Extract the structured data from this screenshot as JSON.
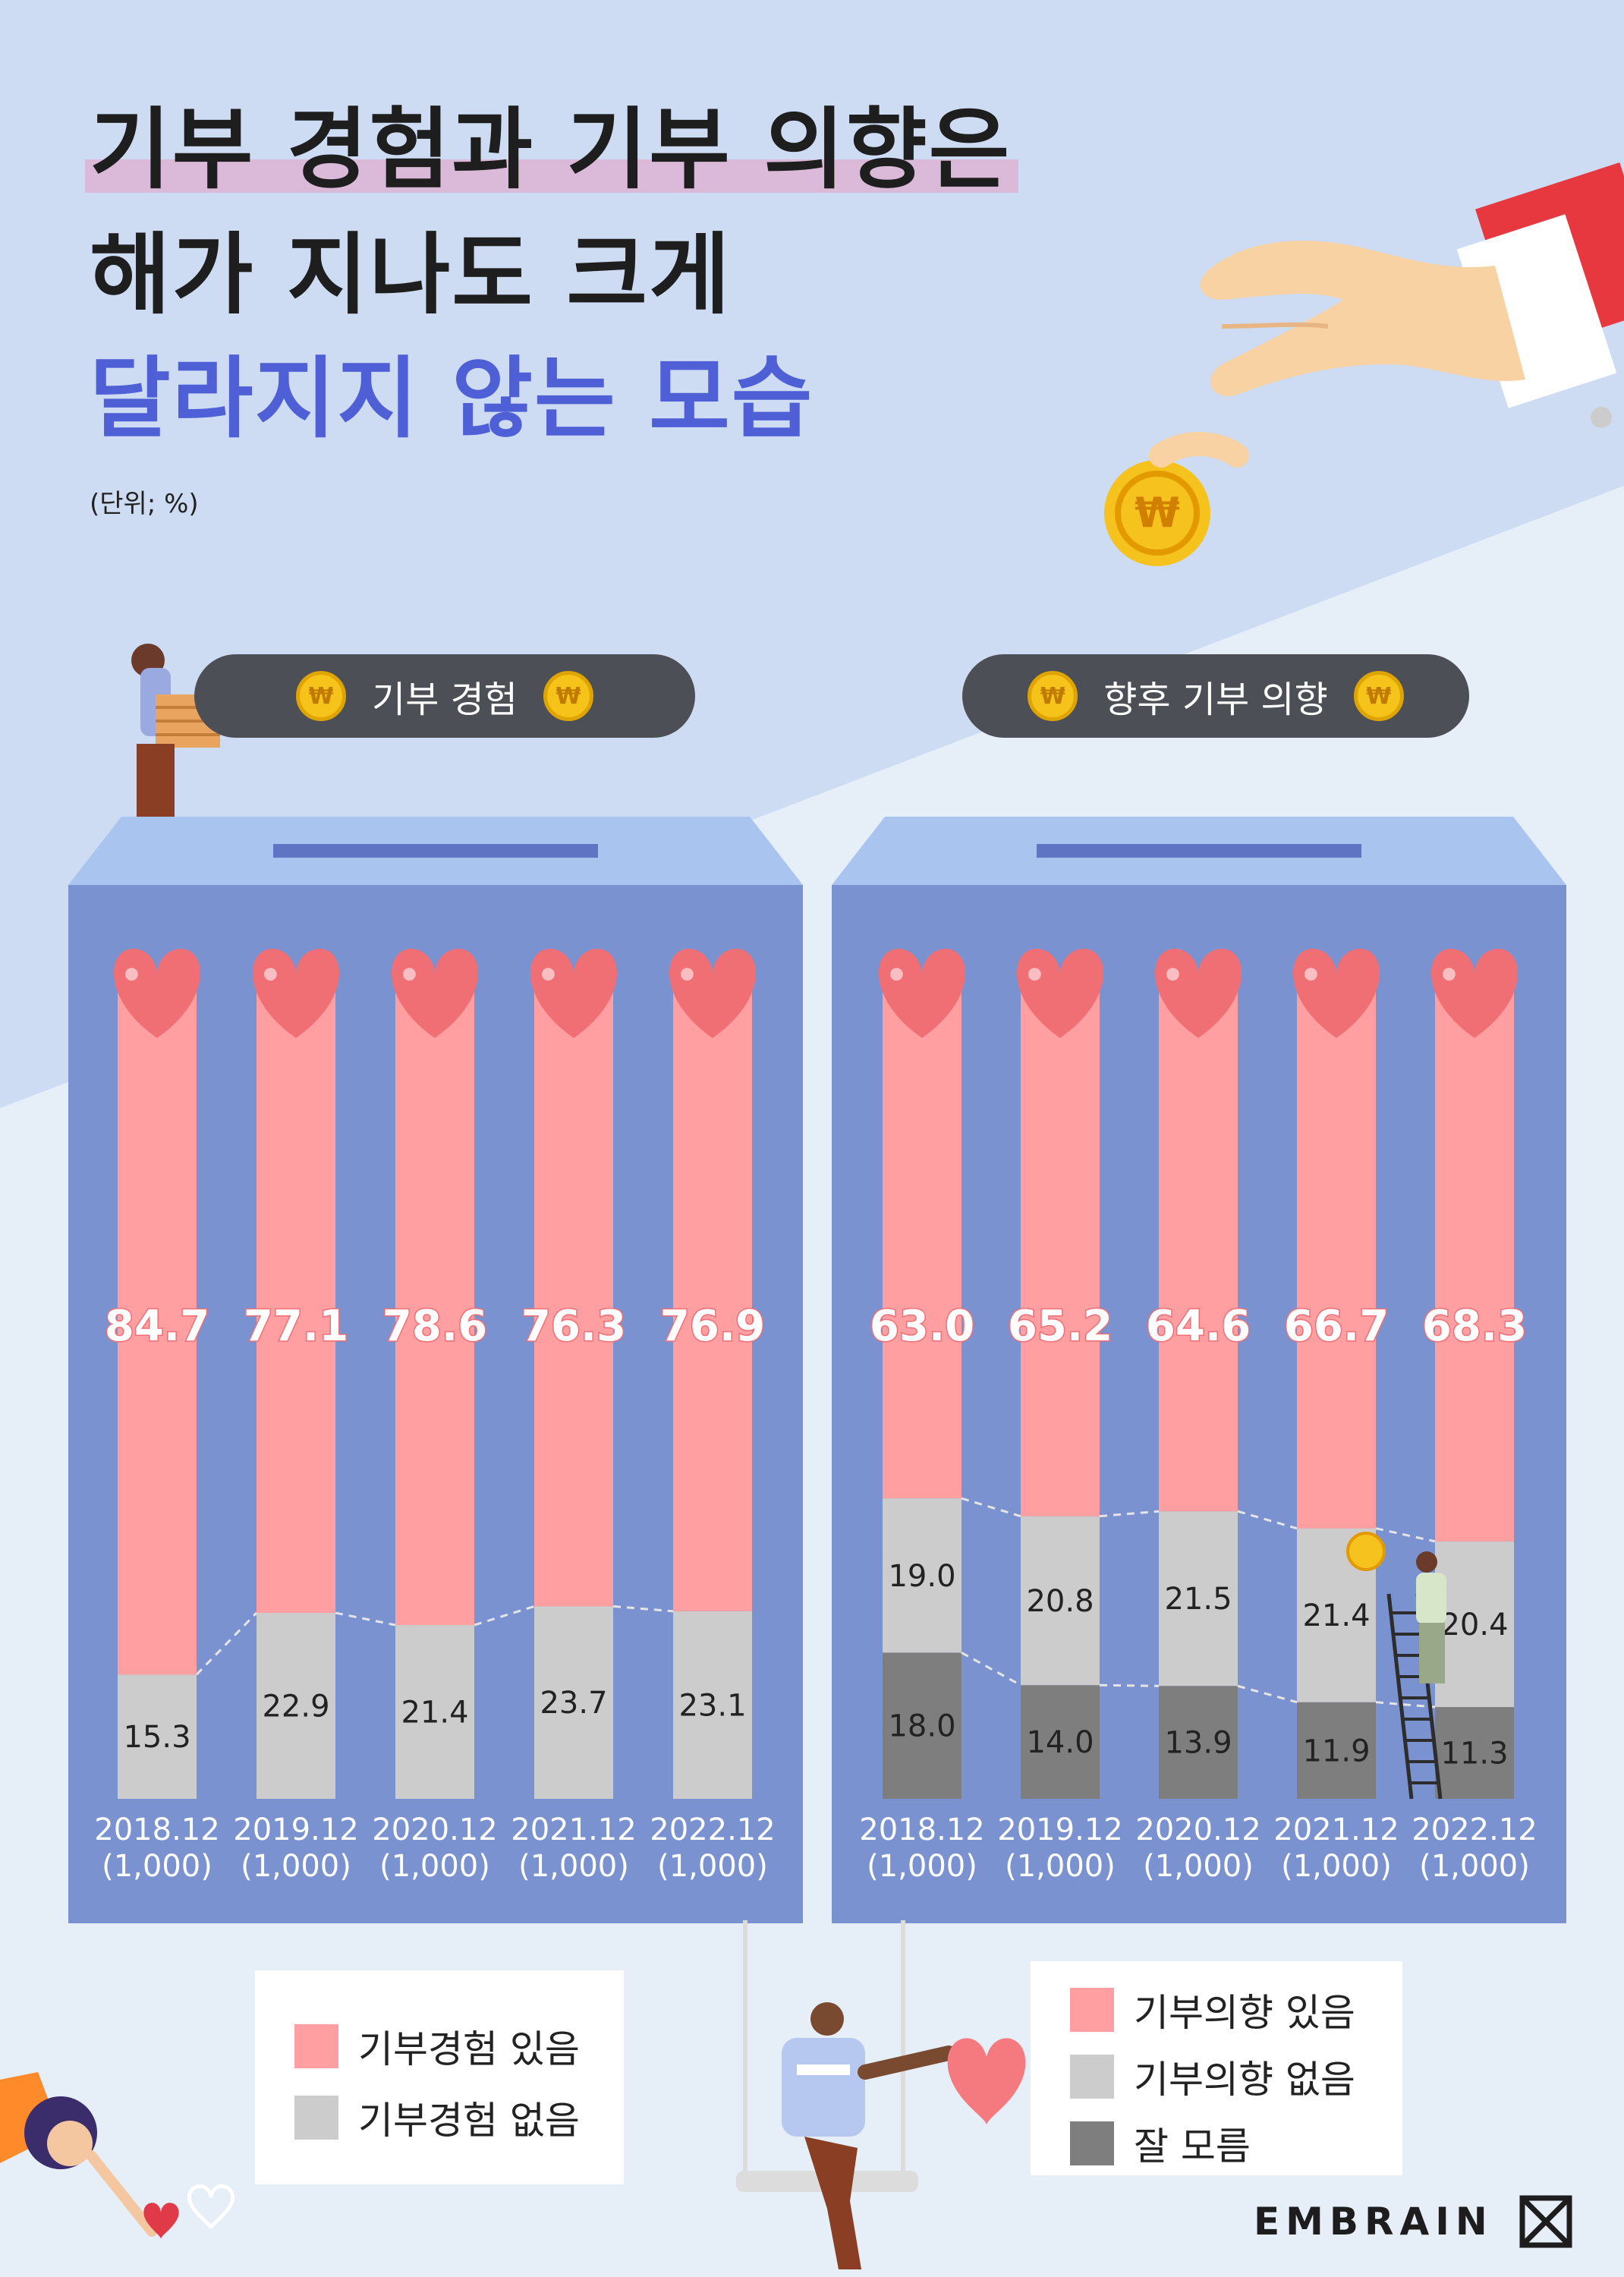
{
  "title": {
    "line1": "기부 경험과 기부 의향은",
    "line2": "해가 지나도 크게",
    "line3": "달라지지 않는 모습"
  },
  "unit": "(단위; %)",
  "brand": "EMBRAIN",
  "coin_symbol": "₩",
  "colors": {
    "positive": "#ff9fa2",
    "negative": "#cccccc",
    "unknown": "#7e7e7e",
    "box": "#7b92d0",
    "box_lid": "#a9c4ef",
    "title_accent": "#4f5fd6",
    "heart": "#f06f75"
  },
  "legends": {
    "left": [
      "기부경험 있음",
      "기부경험 없음"
    ],
    "right": [
      "기부의향 있음",
      "기부의향 없음",
      "잘 모름"
    ]
  },
  "chart_data": [
    {
      "type": "bar",
      "stacked": true,
      "title": "기부 경험",
      "categories": [
        "2018.12",
        "2019.12",
        "2020.12",
        "2021.12",
        "2022.12"
      ],
      "sample_sizes": [
        "(1,000)",
        "(1,000)",
        "(1,000)",
        "(1,000)",
        "(1,000)"
      ],
      "series": [
        {
          "name": "기부경험 없음",
          "values": [
            "15.3",
            "22.9",
            "21.4",
            "23.7",
            "23.1"
          ]
        },
        {
          "name": "기부경험 있음",
          "values": [
            "84.7",
            "77.1",
            "78.6",
            "76.3",
            "76.9"
          ]
        }
      ],
      "ylim": [
        0,
        100
      ]
    },
    {
      "type": "bar",
      "stacked": true,
      "title": "향후 기부 의향",
      "categories": [
        "2018.12",
        "2019.12",
        "2020.12",
        "2021.12",
        "2022.12"
      ],
      "sample_sizes": [
        "(1,000)",
        "(1,000)",
        "(1,000)",
        "(1,000)",
        "(1,000)"
      ],
      "series": [
        {
          "name": "잘 모름",
          "values": [
            "18.0",
            "14.0",
            "13.9",
            "11.9",
            "11.3"
          ]
        },
        {
          "name": "기부의향 없음",
          "values": [
            "19.0",
            "20.8",
            "21.5",
            "21.4",
            "20.4"
          ]
        },
        {
          "name": "기부의향 있음",
          "values": [
            "63.0",
            "65.2",
            "64.6",
            "66.7",
            "68.3"
          ]
        }
      ],
      "ylim": [
        0,
        100
      ]
    }
  ]
}
